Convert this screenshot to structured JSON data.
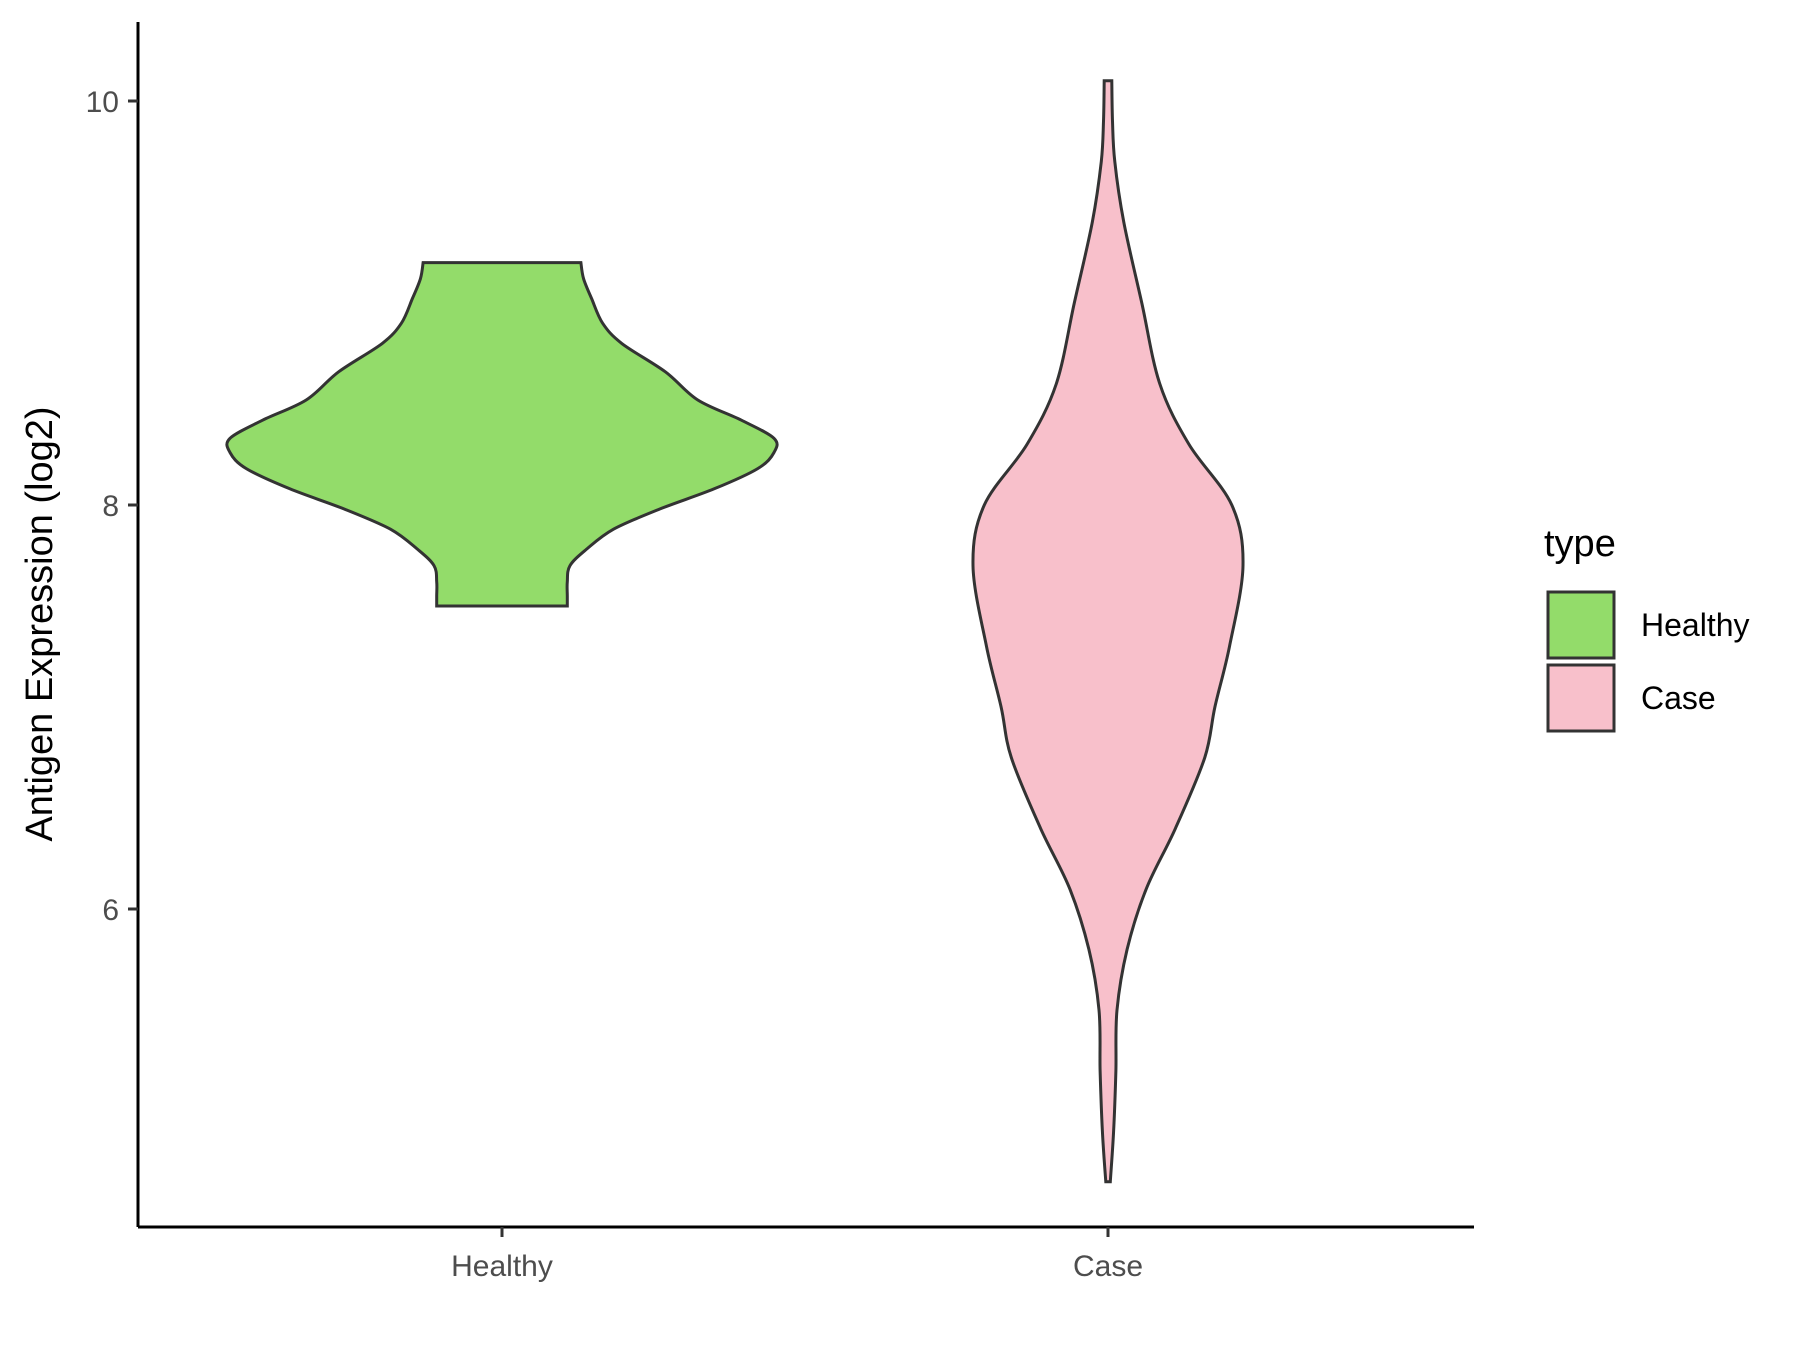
{
  "chart_data": {
    "type": "violin",
    "title": "",
    "xlabel": "",
    "ylabel": "Antigen Expression (log2)",
    "categories": [
      "Healthy",
      "Case"
    ],
    "yticks": [
      6,
      8,
      10
    ],
    "ylim": [
      4.45,
      10.4
    ],
    "legend": {
      "title": "type",
      "position": "right",
      "entries": [
        {
          "label": "Healthy",
          "color": "#93DC6A"
        },
        {
          "label": "Case",
          "color": "#F8C0CB"
        }
      ]
    },
    "series": [
      {
        "name": "Healthy",
        "color": "#93DC6A",
        "ymin": 7.5,
        "ymax": 9.2,
        "density": [
          [
            7.5,
            0.24
          ],
          [
            7.55,
            0.24
          ],
          [
            7.62,
            0.24
          ],
          [
            7.7,
            0.25
          ],
          [
            7.78,
            0.31
          ],
          [
            7.88,
            0.41
          ],
          [
            7.98,
            0.58
          ],
          [
            8.08,
            0.78
          ],
          [
            8.18,
            0.94
          ],
          [
            8.26,
            1.0
          ],
          [
            8.33,
            1.0
          ],
          [
            8.42,
            0.88
          ],
          [
            8.52,
            0.72
          ],
          [
            8.66,
            0.6
          ],
          [
            8.8,
            0.44
          ],
          [
            8.9,
            0.37
          ],
          [
            9.02,
            0.33
          ],
          [
            9.12,
            0.3
          ],
          [
            9.2,
            0.29
          ]
        ]
      },
      {
        "name": "Case",
        "color": "#F8C0CB",
        "ymin": 4.65,
        "ymax": 10.1,
        "density": [
          [
            4.65,
            0.01
          ],
          [
            4.9,
            0.025
          ],
          [
            5.2,
            0.035
          ],
          [
            5.5,
            0.04
          ],
          [
            5.8,
            0.085
          ],
          [
            6.1,
            0.17
          ],
          [
            6.4,
            0.3
          ],
          [
            6.75,
            0.43
          ],
          [
            7.0,
            0.475
          ],
          [
            7.3,
            0.54
          ],
          [
            7.7,
            0.6
          ],
          [
            8.0,
            0.55
          ],
          [
            8.3,
            0.36
          ],
          [
            8.6,
            0.23
          ],
          [
            9.0,
            0.15
          ],
          [
            9.4,
            0.07
          ],
          [
            9.7,
            0.03
          ],
          [
            9.9,
            0.02
          ],
          [
            10.1,
            0.017
          ]
        ]
      }
    ]
  }
}
